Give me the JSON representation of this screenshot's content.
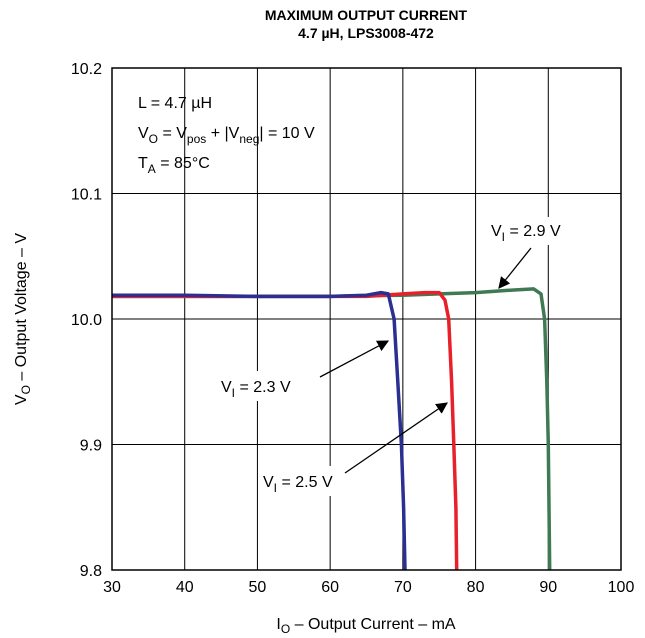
{
  "chart_data": {
    "type": "line",
    "title_line1": "MAXIMUM OUTPUT CURRENT",
    "title_line2": "4.7 µH, LPS3008-472",
    "xlabel": {
      "main": "I",
      "sub": "O",
      "rest": " – Output Current – mA"
    },
    "ylabel": {
      "main": "V",
      "sub": "O",
      "rest": " – Output Voltage – V"
    },
    "xlim": [
      30,
      100
    ],
    "ylim": [
      9.8,
      10.2
    ],
    "xticks": [
      30,
      40,
      50,
      60,
      70,
      80,
      90,
      100
    ],
    "yticks": [
      {
        "v": 9.8,
        "label": "9.8"
      },
      {
        "v": 9.9,
        "label": "9.9"
      },
      {
        "v": 10.0,
        "label": "10.0"
      },
      {
        "v": 10.1,
        "label": "10.1"
      },
      {
        "v": 10.2,
        "label": "10.2"
      }
    ],
    "grid": true,
    "conditions": [
      {
        "parts": [
          {
            "t": "L = 4.7 µH"
          }
        ]
      },
      {
        "parts": [
          {
            "t": "V"
          },
          {
            "t": "O",
            "sub": true
          },
          {
            "t": " = V"
          },
          {
            "t": "pos",
            "sub": true
          },
          {
            "t": " + |V"
          },
          {
            "t": "neg",
            "sub": true
          },
          {
            "t": "| = 10 V"
          }
        ]
      },
      {
        "parts": [
          {
            "t": "T"
          },
          {
            "t": "A",
            "sub": true
          },
          {
            "t": " = 85°C"
          }
        ]
      }
    ],
    "series": [
      {
        "label": {
          "main": "V",
          "sub": "I",
          "rest": " = 2.9 V"
        },
        "color": "#3f7a55",
        "points": [
          [
            30,
            10.018
          ],
          [
            40,
            10.018
          ],
          [
            50,
            10.018
          ],
          [
            60,
            10.018
          ],
          [
            70,
            10.019
          ],
          [
            75,
            10.02
          ],
          [
            80,
            10.021
          ],
          [
            85,
            10.023
          ],
          [
            88,
            10.024
          ],
          [
            89,
            10.02
          ],
          [
            89.5,
            10.0
          ],
          [
            89.8,
            9.95
          ],
          [
            90,
            9.9
          ],
          [
            90.2,
            9.8
          ]
        ]
      },
      {
        "label": {
          "main": "V",
          "sub": "I",
          "rest": " = 2.5 V"
        },
        "color": "#e8202a",
        "points": [
          [
            30,
            10.018
          ],
          [
            40,
            10.018
          ],
          [
            50,
            10.018
          ],
          [
            60,
            10.018
          ],
          [
            65,
            10.018
          ],
          [
            70,
            10.02
          ],
          [
            73,
            10.021
          ],
          [
            75,
            10.021
          ],
          [
            75.8,
            10.015
          ],
          [
            76.3,
            10.0
          ],
          [
            76.7,
            9.95
          ],
          [
            77,
            9.9
          ],
          [
            77.3,
            9.85
          ],
          [
            77.4,
            9.8
          ]
        ]
      },
      {
        "label": {
          "main": "V",
          "sub": "I",
          "rest": " = 2.3 V"
        },
        "color": "#2b2f91",
        "points": [
          [
            30,
            10.019
          ],
          [
            40,
            10.019
          ],
          [
            50,
            10.018
          ],
          [
            60,
            10.018
          ],
          [
            65,
            10.019
          ],
          [
            67,
            10.021
          ],
          [
            68,
            10.02
          ],
          [
            68.8,
            10.0
          ],
          [
            69.3,
            9.95
          ],
          [
            69.8,
            9.9
          ],
          [
            70.1,
            9.85
          ],
          [
            70.3,
            9.8
          ]
        ]
      }
    ]
  }
}
